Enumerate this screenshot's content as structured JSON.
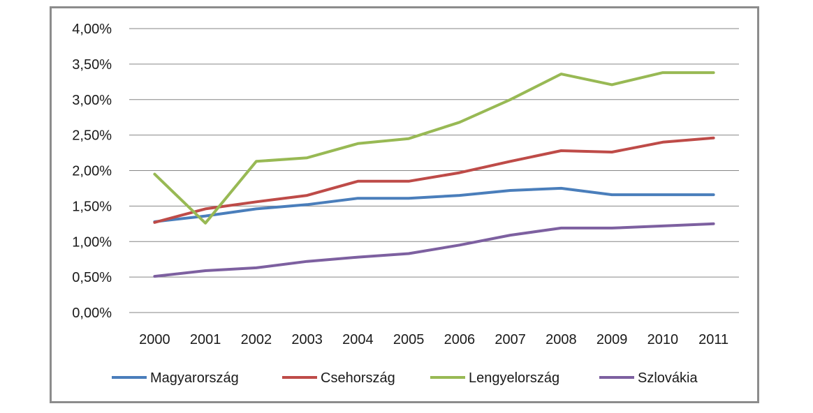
{
  "chart_data": {
    "type": "line",
    "title": "",
    "xlabel": "",
    "ylabel": "",
    "categories": [
      "2000",
      "2001",
      "2002",
      "2003",
      "2004",
      "2005",
      "2006",
      "2007",
      "2008",
      "2009",
      "2010",
      "2011"
    ],
    "y_tick_labels": [
      "0,00%",
      "0,50%",
      "1,00%",
      "1,50%",
      "2,00%",
      "2,50%",
      "3,00%",
      "3,50%",
      "4,00%"
    ],
    "ylim": [
      0,
      4
    ],
    "y_unit": "%",
    "grid": true,
    "legend_position": "bottom",
    "series": [
      {
        "name": "Magyarország",
        "color": "#4a7ebb",
        "values": [
          1.28,
          1.36,
          1.46,
          1.52,
          1.61,
          1.61,
          1.65,
          1.72,
          1.75,
          1.66,
          1.66,
          1.66
        ]
      },
      {
        "name": "Csehország",
        "color": "#be4b48",
        "values": [
          1.27,
          1.46,
          1.56,
          1.65,
          1.85,
          1.85,
          1.97,
          2.13,
          2.28,
          2.26,
          2.4,
          2.46
        ]
      },
      {
        "name": "Lengyelország",
        "color": "#98b954",
        "values": [
          1.95,
          1.26,
          2.13,
          2.18,
          2.38,
          2.45,
          2.68,
          3.0,
          3.36,
          3.21,
          3.38,
          3.38
        ]
      },
      {
        "name": "Szlovákia",
        "color": "#7d60a0",
        "values": [
          0.51,
          0.59,
          0.63,
          0.72,
          0.78,
          0.83,
          0.95,
          1.09,
          1.19,
          1.19,
          1.22,
          1.25
        ]
      }
    ]
  }
}
